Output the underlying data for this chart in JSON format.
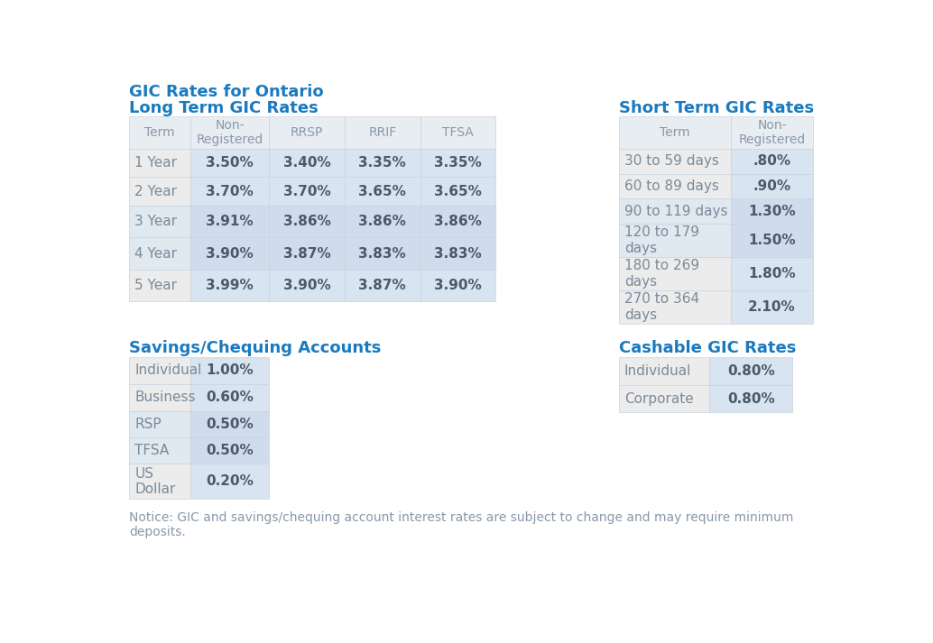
{
  "title": "GIC Rates for Ontario",
  "title_color": "#1a7abf",
  "background_color": "#ffffff",
  "long_term_title": "Long Term GIC Rates",
  "long_term_headers": [
    "Term",
    "Non-\nRegistered",
    "RRSP",
    "RRIF",
    "TFSA"
  ],
  "long_term_rows": [
    [
      "1 Year",
      "3.50%",
      "3.40%",
      "3.35%",
      "3.35%"
    ],
    [
      "2 Year",
      "3.70%",
      "3.70%",
      "3.65%",
      "3.65%"
    ],
    [
      "3 Year",
      "3.91%",
      "3.86%",
      "3.86%",
      "3.86%"
    ],
    [
      "4 Year",
      "3.90%",
      "3.87%",
      "3.83%",
      "3.83%"
    ],
    [
      "5 Year",
      "3.99%",
      "3.90%",
      "3.87%",
      "3.90%"
    ]
  ],
  "short_term_title": "Short Term GIC Rates",
  "short_term_headers": [
    "Term",
    "Non-\nRegistered"
  ],
  "short_term_rows": [
    [
      "30 to 59 days",
      ".80%"
    ],
    [
      "60 to 89 days",
      ".90%"
    ],
    [
      "90 to 119 days",
      "1.30%"
    ],
    [
      "120 to 179\ndays",
      "1.50%"
    ],
    [
      "180 to 269\ndays",
      "1.80%"
    ],
    [
      "270 to 364\ndays",
      "2.10%"
    ]
  ],
  "savings_title": "Savings/Chequing Accounts",
  "savings_rows": [
    [
      "Individual",
      "1.00%"
    ],
    [
      "Business",
      "0.60%"
    ],
    [
      "RSP",
      "0.50%"
    ],
    [
      "TFSA",
      "0.50%"
    ],
    [
      "US\nDollar",
      "0.20%"
    ]
  ],
  "cashable_title": "Cashable GIC Rates",
  "cashable_rows": [
    [
      "Individual",
      "0.80%"
    ],
    [
      "Corporate",
      "0.80%"
    ]
  ],
  "notice_text": "Notice: GIC and savings/chequing account interest rates are subject to change and may require minimum\ndeposits.",
  "header_bg": "#e8edf2",
  "row_odd_left": "#ececec",
  "row_even_left": "#e0e8f0",
  "row_odd_right": "#d8e4ef",
  "row_even_right": "#d0dceb",
  "header_text_color": "#8899aa",
  "row_label_color": "#7a8a99",
  "value_text_color": "#4a5a6a",
  "section_title_color": "#1a7abf",
  "notice_color": "#8899aa",
  "border_color": "#c8d4de"
}
